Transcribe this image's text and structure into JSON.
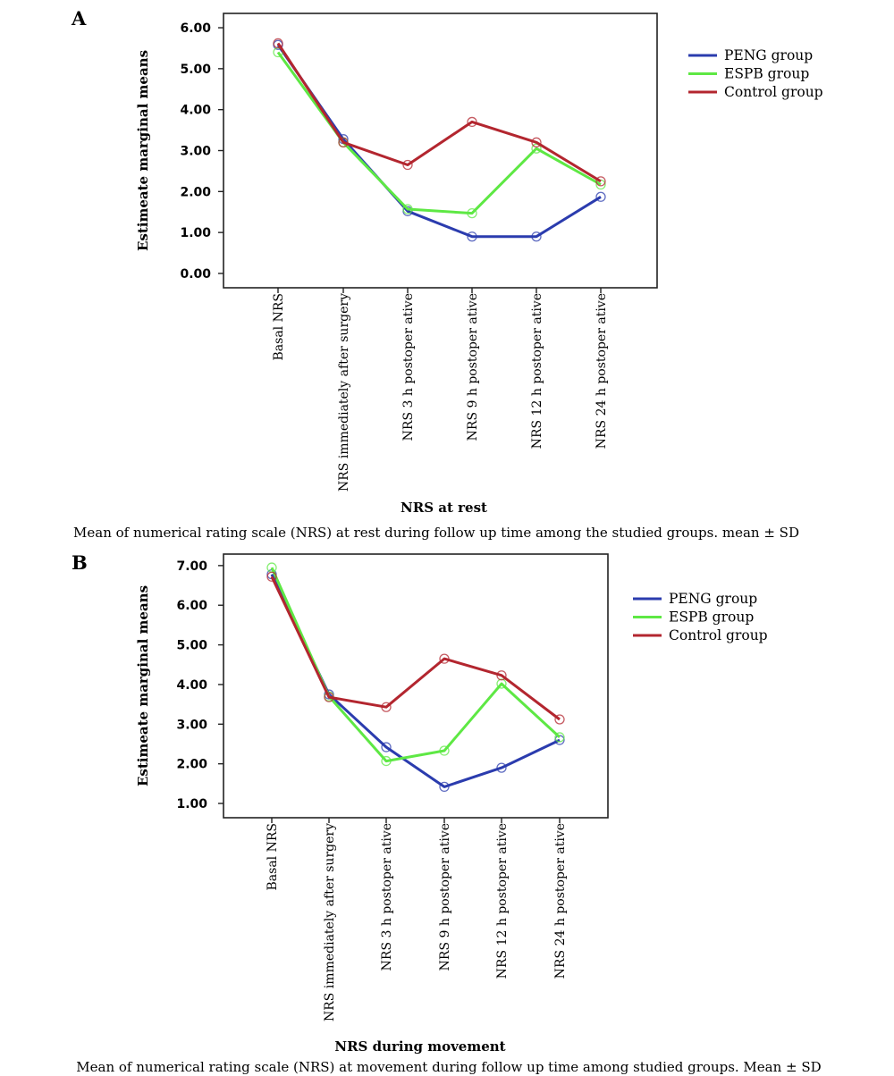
{
  "chart_data": [
    {
      "panel": "A",
      "type": "line",
      "categories": [
        "Basal NRS",
        "NRS immediately after surgery",
        "NRS 3 h postoper ative",
        "NRS 9 h postoper ative",
        "NRS 12 h postoper ative",
        "NRS 24 h postoper ative"
      ],
      "series": [
        {
          "name": "PENG group",
          "color": "#2b3cae",
          "values": [
            5.58,
            3.28,
            1.52,
            0.9,
            0.9,
            1.87
          ]
        },
        {
          "name": "ESPB group",
          "color": "#5ee844",
          "values": [
            5.4,
            3.2,
            1.57,
            1.47,
            3.05,
            2.17
          ]
        },
        {
          "name": "Control group",
          "color": "#b3262f",
          "values": [
            5.62,
            3.2,
            2.65,
            3.7,
            3.2,
            2.25
          ]
        }
      ],
      "yticks": [
        "0.00",
        "1.00",
        "2.00",
        "3.00",
        "4.00",
        "5.00",
        "6.00"
      ],
      "ylim": [
        -0.35,
        6.35
      ],
      "ylabel": "Estimeate marginal means",
      "xlabel": "NRS at rest",
      "caption": "Mean of numerical rating scale (NRS) at rest during follow up time among the studied groups. mean ± SD",
      "legend_position": "right",
      "grid": false
    },
    {
      "panel": "B",
      "type": "line",
      "categories": [
        "Basal NRS",
        "NRS immediately after surgery",
        "NRS 3 h postoper ative",
        "NRS 9 h postoper ative",
        "NRS 12 h postoper ative",
        "NRS 24 h postoper ative"
      ],
      "series": [
        {
          "name": "PENG group",
          "color": "#2b3cae",
          "values": [
            6.78,
            3.75,
            2.42,
            1.42,
            1.9,
            2.6
          ]
        },
        {
          "name": "ESPB group",
          "color": "#5ee844",
          "values": [
            6.95,
            3.7,
            2.07,
            2.33,
            4.02,
            2.67
          ]
        },
        {
          "name": "Control group",
          "color": "#b3262f",
          "values": [
            6.72,
            3.68,
            3.43,
            4.65,
            4.23,
            3.12
          ]
        }
      ],
      "yticks": [
        "1.00",
        "2.00",
        "3.00",
        "4.00",
        "5.00",
        "6.00",
        "7.00"
      ],
      "ylim": [
        0.64,
        7.29
      ],
      "ylabel": "Estimeate marginal means",
      "xlabel": "NRS during movement",
      "caption": "Mean of numerical rating scale (NRS) at movement during follow up time among studied groups. Mean ± SD",
      "legend_position": "right",
      "grid": false
    }
  ]
}
